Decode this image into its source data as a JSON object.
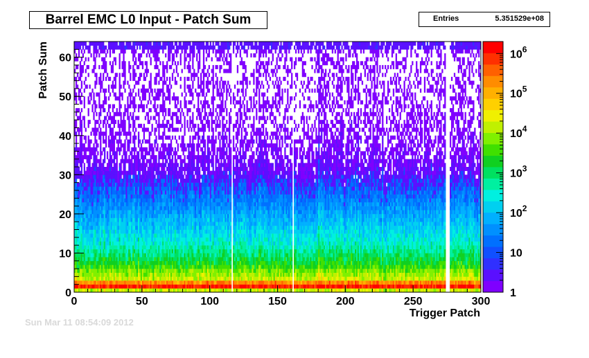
{
  "chart_data": {
    "type": "heatmap",
    "title": "Barrel EMC L0 Input - Patch Sum",
    "xlabel": "Trigger Patch",
    "ylabel": "Patch Sum",
    "xlim": [
      0,
      300
    ],
    "ylim": [
      0,
      64
    ],
    "x_ticks": [
      "0",
      "50",
      "100",
      "150",
      "200",
      "250",
      "300"
    ],
    "y_ticks": [
      "0",
      "10",
      "20",
      "30",
      "40",
      "50",
      "60"
    ],
    "z_scale": "log",
    "zlim": [
      1,
      2000000
    ],
    "z_ticks": [
      {
        "value": 1,
        "label": "1"
      },
      {
        "value": 10,
        "label": "10"
      },
      {
        "value": 100,
        "label": "10",
        "exp": "2"
      },
      {
        "value": 1000,
        "label": "10",
        "exp": "3"
      },
      {
        "value": 10000,
        "label": "10",
        "exp": "4"
      },
      {
        "value": 100000,
        "label": "10",
        "exp": "5"
      },
      {
        "value": 1000000,
        "label": "10",
        "exp": "6"
      }
    ],
    "palette": [
      "#7f00ff",
      "#5a10ff",
      "#3030ff",
      "#1050ff",
      "#0070ff",
      "#0090ff",
      "#00b0ff",
      "#00d0f0",
      "#00f0e0",
      "#00f0a0",
      "#00e060",
      "#10d020",
      "#40e000",
      "#80f000",
      "#c0f000",
      "#f0f000",
      "#ffd000",
      "#ffb000",
      "#ff8c00",
      "#ff6000",
      "#ff3000",
      "#ff0000"
    ],
    "grid": false,
    "legend": "none",
    "profile": {
      "sum": [
        0,
        1,
        2,
        3,
        4,
        5,
        6,
        8,
        10,
        12,
        15,
        18,
        20,
        23,
        25,
        28,
        30,
        33,
        36,
        40,
        45,
        50,
        55,
        60,
        63
      ],
      "log10_counts": [
        4.2,
        6.0,
        5.3,
        4.2,
        4.0,
        3.8,
        3.5,
        3.1,
        2.8,
        2.5,
        2.2,
        1.9,
        1.7,
        1.4,
        1.2,
        0.9,
        0.65,
        0.45,
        0.3,
        0.2,
        0.1,
        0.05,
        0.02,
        0.01,
        0.3
      ]
    },
    "empty_patches": [
      116,
      161,
      274,
      275,
      276
    ],
    "bright_patches": [
      180
    ]
  },
  "stats": {
    "entries_label": "Entries",
    "entries_value": "5.351529e+08"
  },
  "footer_date": "Sun Mar 11 08:54:09 2012"
}
